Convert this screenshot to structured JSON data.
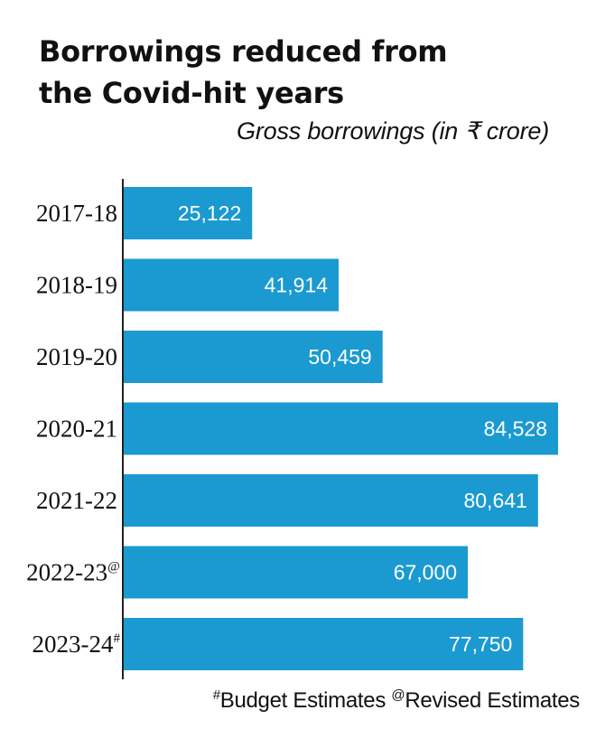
{
  "title_line1": "Borrowings reduced from",
  "title_line2": "the Covid-hit years",
  "subtitle": "Gross borrowings (in ₹ crore)",
  "footnote": {
    "budget_mark": "#",
    "budget_text": "Budget Estimates",
    "revised_mark": "@",
    "revised_text": "Revised Estimates"
  },
  "colors": {
    "bar": "#1a9ad1",
    "bar_label": "#ffffff",
    "axis": "#222222"
  },
  "chart_data": {
    "type": "bar",
    "orientation": "horizontal",
    "categories": [
      "2017-18",
      "2018-19",
      "2019-20",
      "2020-21",
      "2021-22",
      "2022-23",
      "2023-24"
    ],
    "category_marks": [
      "",
      "",
      "",
      "",
      "",
      "@",
      "#"
    ],
    "values": [
      25122,
      41914,
      50459,
      84528,
      80641,
      67000,
      77750
    ],
    "value_labels": [
      "25,122",
      "41,914",
      "50,459",
      "84,528",
      "80,641",
      "67,000",
      "77,750"
    ],
    "xlim": [
      0,
      84528
    ],
    "grid": false,
    "legend": "none"
  }
}
